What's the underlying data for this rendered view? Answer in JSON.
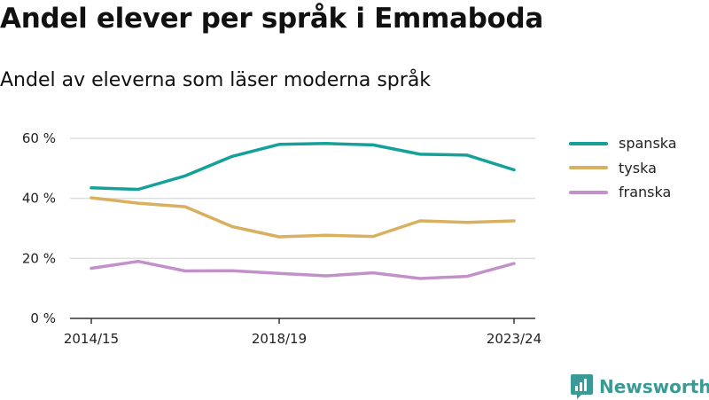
{
  "chart_data": {
    "type": "line",
    "title": "Andel elever per språk i Emmaboda",
    "subtitle": "Andel av eleverna som läser moderna språk",
    "x_ticks": [
      "2014/15",
      "2018/19",
      "2023/24"
    ],
    "y_ticks": [
      "0 %",
      "20 %",
      "40 %",
      "60 %"
    ],
    "ylim": [
      0,
      60
    ],
    "grid": true,
    "legend_position": "right",
    "series": [
      {
        "name": "spanska",
        "color": "#15a199",
        "values": [
          43.5,
          43,
          47.5,
          54,
          58,
          58.3,
          57.8,
          54.7,
          54.4,
          49.5
        ]
      },
      {
        "name": "tyska",
        "color": "#d9b05f",
        "values": [
          40.2,
          38.4,
          37.2,
          30.6,
          27.2,
          27.7,
          27.3,
          32.5,
          32,
          32.5
        ]
      },
      {
        "name": "franska",
        "color": "#c291c9",
        "values": [
          16.7,
          19,
          15.8,
          15.9,
          15,
          14.2,
          15.2,
          13.3,
          14,
          18.3
        ]
      }
    ]
  },
  "brand": {
    "name": "Newsworthy",
    "logo": "newsworthy-logo-icon",
    "color": "#3a9a95"
  }
}
